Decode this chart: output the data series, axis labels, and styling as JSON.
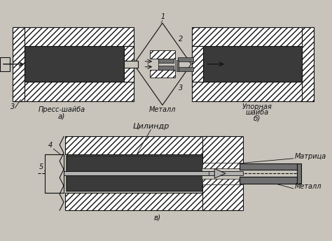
{
  "bg_color": "#c8c4bc",
  "dark_fill": "#3a3a3a",
  "med_fill": "#707070",
  "light_fill": "#b0b0b0",
  "hatch_fill": "#ffffff",
  "line_color": "#111111",
  "labels": {
    "1": "1",
    "2": "2",
    "3": "3",
    "4": "4",
    "5": "5",
    "press": "Пресс-шайба",
    "a": "а)",
    "metal_top": "Металл",
    "backup": "Упорная\nшайба",
    "b": "б)",
    "cylinder": "Цилиндр",
    "matrix": "Матрица",
    "metal_bot": "Металл",
    "v": "в)"
  }
}
